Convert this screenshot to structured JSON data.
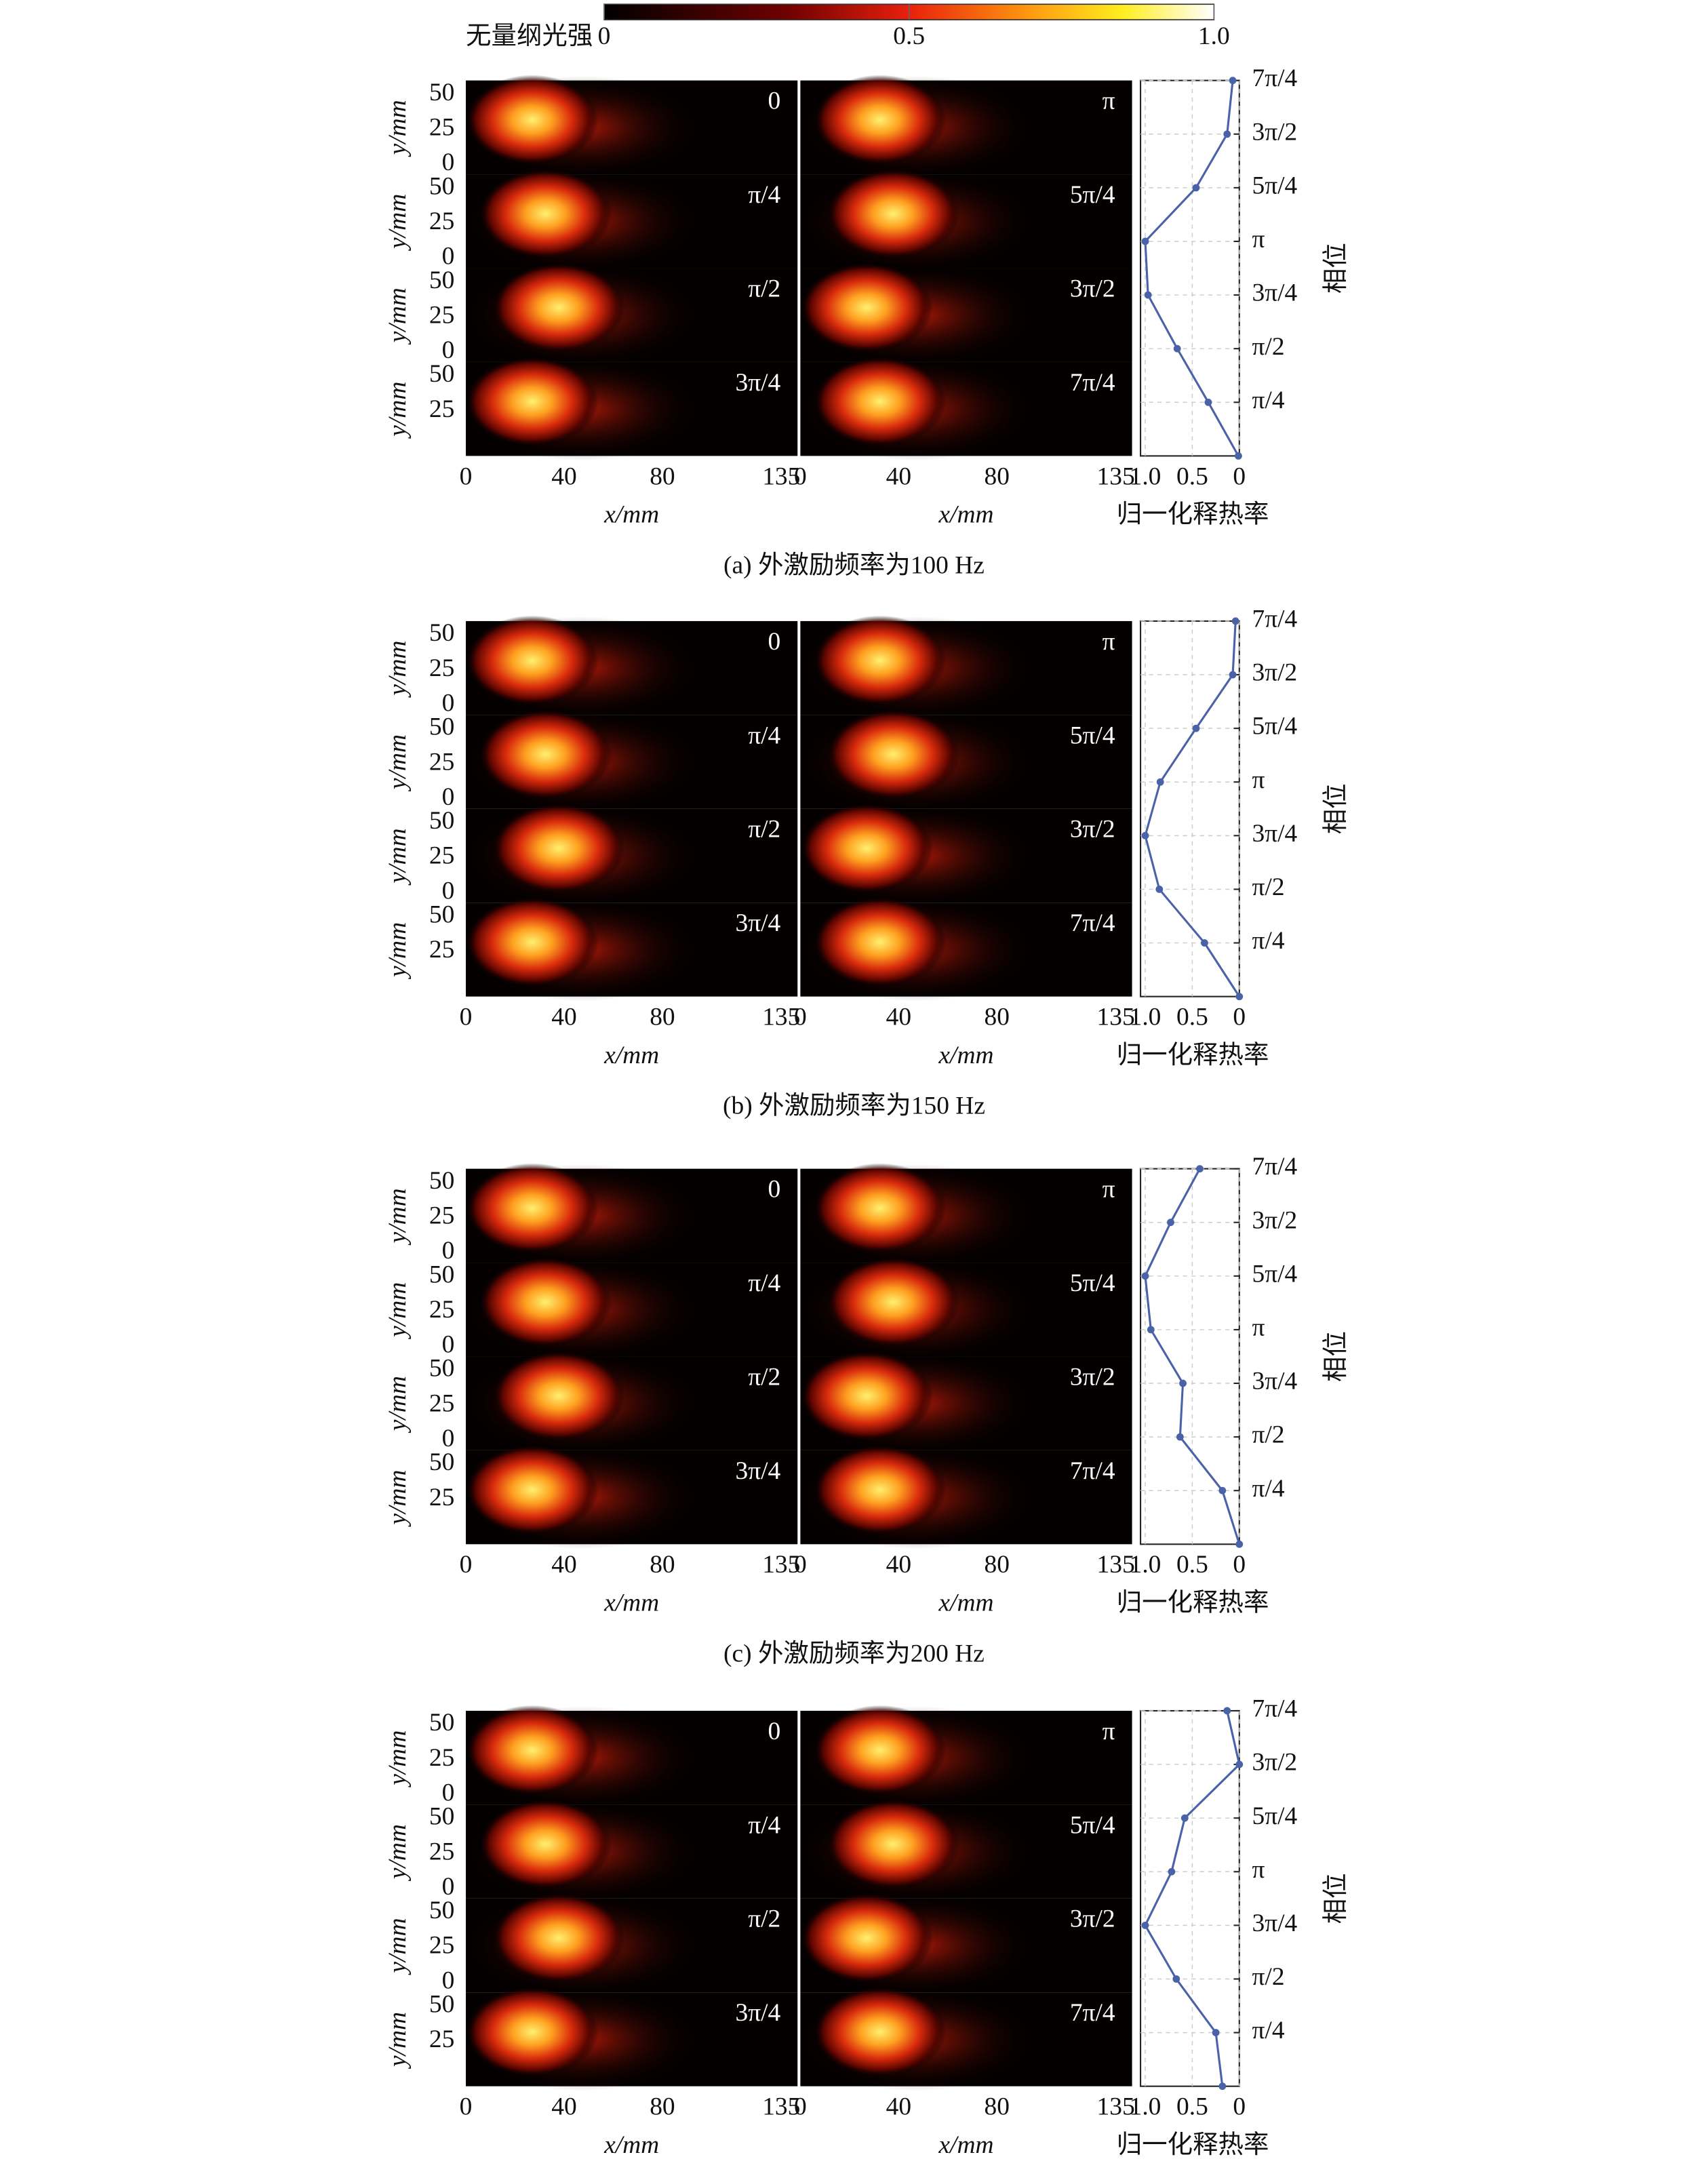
{
  "colorbar": {
    "title": "无量纲光强",
    "lim": [
      0,
      1
    ],
    "ticks": [
      0,
      0.5,
      {
        "value": 1,
        "label": "1.0"
      }
    ]
  },
  "chart_data": [
    {
      "type": "line",
      "caption": "(a) 外激励频率为100 Hz",
      "image_labels": [
        "0",
        "π/4",
        "π/2",
        "3π/4",
        "π",
        "5π/4",
        "3π/2",
        "7π/4"
      ],
      "image_xlabel": "x/mm",
      "image_ylabel": "y/mm",
      "image_xticks": [
        0,
        40,
        80,
        135
      ],
      "image_xlim": [
        0,
        135
      ],
      "image_yticks": [
        0,
        25,
        50
      ],
      "image_ylim": [
        -7,
        60
      ],
      "x_label": "归一化释热率",
      "y_label": "相位",
      "xlim": [
        1.05,
        0
      ],
      "xticks": [
        {
          "value": 1,
          "label": "1.0"
        },
        0.5,
        0
      ],
      "ylim": [
        0,
        5.4978
      ],
      "yticks": [
        {
          "value": 0.7854,
          "label": "π/4"
        },
        {
          "value": 1.5708,
          "label": "π/2"
        },
        {
          "value": 2.3562,
          "label": "3π/4"
        },
        {
          "value": 3.1416,
          "label": "π"
        },
        {
          "value": 3.927,
          "label": "5π/4"
        },
        {
          "value": 4.7124,
          "label": "3π/2"
        },
        {
          "value": 5.4978,
          "label": "7π/4"
        }
      ],
      "y": [
        0,
        0.7854,
        1.5708,
        2.3562,
        3.1416,
        3.927,
        4.7124,
        5.4978
      ],
      "grid": true,
      "series": [
        {
          "color": "#4a62a8",
          "values": [
            0.01,
            0.33,
            0.66,
            0.97,
            1.0,
            0.46,
            0.13,
            0.07
          ]
        }
      ]
    },
    {
      "type": "line",
      "caption": "(b) 外激励频率为150 Hz",
      "image_labels": [
        "0",
        "π/4",
        "π/2",
        "3π/4",
        "π",
        "5π/4",
        "3π/2",
        "7π/4"
      ],
      "image_xlabel": "x/mm",
      "image_ylabel": "y/mm",
      "image_xticks": [
        0,
        40,
        80,
        135
      ],
      "image_xlim": [
        0,
        135
      ],
      "image_yticks": [
        0,
        25,
        50
      ],
      "image_ylim": [
        -7,
        60
      ],
      "x_label": "归一化释热率",
      "y_label": "相位",
      "xlim": [
        1.05,
        0
      ],
      "xticks": [
        {
          "value": 1,
          "label": "1.0"
        },
        0.5,
        0
      ],
      "ylim": [
        0,
        5.4978
      ],
      "yticks": [
        {
          "value": 0.7854,
          "label": "π/4"
        },
        {
          "value": 1.5708,
          "label": "π/2"
        },
        {
          "value": 2.3562,
          "label": "3π/4"
        },
        {
          "value": 3.1416,
          "label": "π"
        },
        {
          "value": 3.927,
          "label": "5π/4"
        },
        {
          "value": 4.7124,
          "label": "3π/2"
        },
        {
          "value": 5.4978,
          "label": "7π/4"
        }
      ],
      "y": [
        0,
        0.7854,
        1.5708,
        2.3562,
        3.1416,
        3.927,
        4.7124,
        5.4978
      ],
      "grid": true,
      "series": [
        {
          "color": "#4a62a8",
          "values": [
            0,
            0.37,
            0.85,
            1.0,
            0.84,
            0.46,
            0.07,
            0.04
          ]
        }
      ]
    },
    {
      "type": "line",
      "caption": "(c) 外激励频率为200 Hz",
      "image_labels": [
        "0",
        "π/4",
        "π/2",
        "3π/4",
        "π",
        "5π/4",
        "3π/2",
        "7π/4"
      ],
      "image_xlabel": "x/mm",
      "image_ylabel": "y/mm",
      "image_xticks": [
        0,
        40,
        80,
        135
      ],
      "image_xlim": [
        0,
        135
      ],
      "image_yticks": [
        0,
        25,
        50
      ],
      "image_ylim": [
        -7,
        60
      ],
      "x_label": "归一化释热率",
      "y_label": "相位",
      "xlim": [
        1.05,
        0
      ],
      "xticks": [
        {
          "value": 1,
          "label": "1.0"
        },
        0.5,
        0
      ],
      "ylim": [
        0,
        5.4978
      ],
      "yticks": [
        {
          "value": 0.7854,
          "label": "π/4"
        },
        {
          "value": 1.5708,
          "label": "π/2"
        },
        {
          "value": 2.3562,
          "label": "3π/4"
        },
        {
          "value": 3.1416,
          "label": "π"
        },
        {
          "value": 3.927,
          "label": "5π/4"
        },
        {
          "value": 4.7124,
          "label": "3π/2"
        },
        {
          "value": 5.4978,
          "label": "7π/4"
        }
      ],
      "y": [
        0,
        0.7854,
        1.5708,
        2.3562,
        3.1416,
        3.927,
        4.7124,
        5.4978
      ],
      "grid": true,
      "series": [
        {
          "color": "#4a62a8",
          "values": [
            0,
            0.18,
            0.63,
            0.6,
            0.94,
            1.0,
            0.73,
            0.42
          ]
        }
      ]
    },
    {
      "type": "line",
      "caption": "(d) 外激励频率为300 Hz",
      "image_labels": [
        "0",
        "π/4",
        "π/2",
        "3π/4",
        "π",
        "5π/4",
        "3π/2",
        "7π/4"
      ],
      "image_xlabel": "x/mm",
      "image_ylabel": "y/mm",
      "image_xticks": [
        0,
        40,
        80,
        135
      ],
      "image_xlim": [
        0,
        135
      ],
      "image_yticks": [
        0,
        25,
        50
      ],
      "image_ylim": [
        -7,
        60
      ],
      "x_label": "归一化释热率",
      "y_label": "相位",
      "xlim": [
        1.05,
        0
      ],
      "xticks": [
        {
          "value": 1,
          "label": "1.0"
        },
        0.5,
        0
      ],
      "ylim": [
        0,
        5.4978
      ],
      "yticks": [
        {
          "value": 0.7854,
          "label": "π/4"
        },
        {
          "value": 1.5708,
          "label": "π/2"
        },
        {
          "value": 2.3562,
          "label": "3π/4"
        },
        {
          "value": 3.1416,
          "label": "π"
        },
        {
          "value": 3.927,
          "label": "5π/4"
        },
        {
          "value": 4.7124,
          "label": "3π/2"
        },
        {
          "value": 5.4978,
          "label": "7π/4"
        }
      ],
      "y": [
        0,
        0.7854,
        1.5708,
        2.3562,
        3.1416,
        3.927,
        4.7124,
        5.4978
      ],
      "grid": true,
      "series": [
        {
          "color": "#4a62a8",
          "values": [
            0.18,
            0.25,
            0.67,
            1.0,
            0.72,
            0.58,
            0,
            0.13
          ]
        }
      ]
    }
  ]
}
